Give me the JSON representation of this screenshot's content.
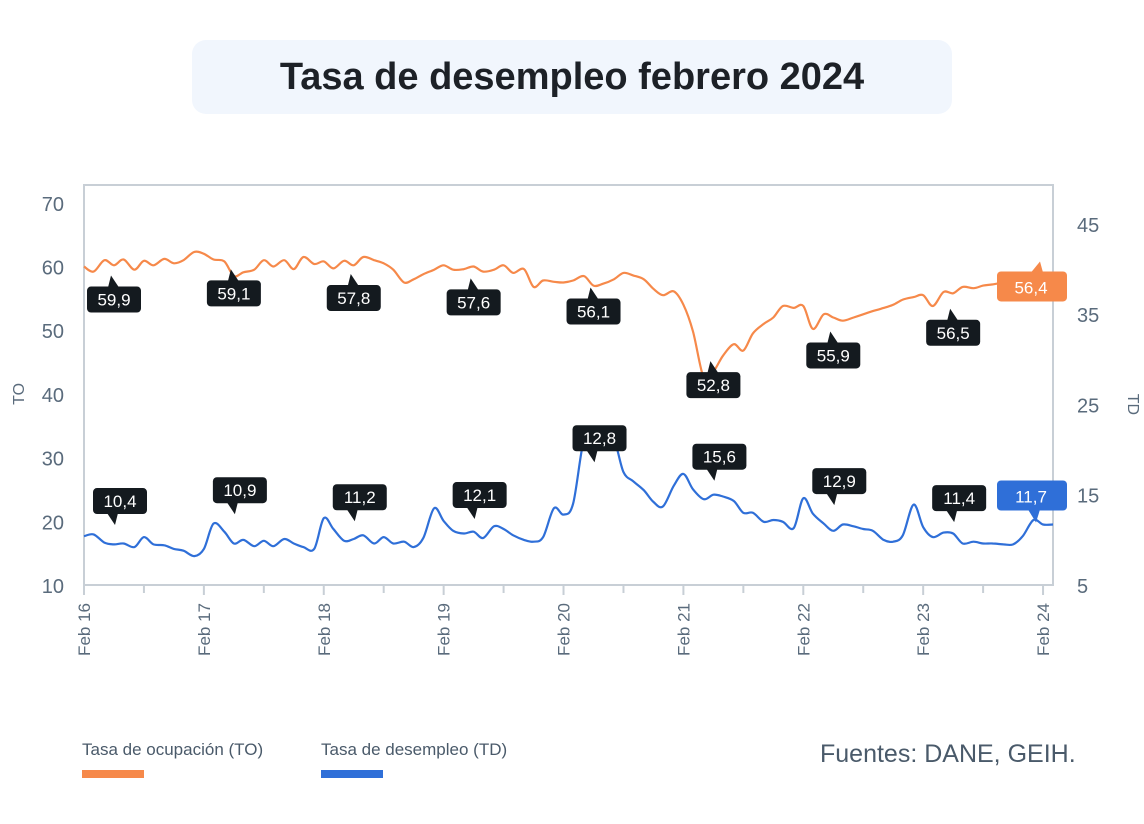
{
  "title": "Tasa de desempleo febrero 2024",
  "source": "Fuentes: DANE, GEIH.",
  "colors": {
    "to": "#f6894a",
    "td": "#2f6fd8",
    "badge": "#141a1f",
    "axis": "#c8cfd6"
  },
  "chart_data": {
    "type": "line",
    "title": "Tasa de desempleo febrero 2024",
    "x_ticks": [
      "Feb 16",
      "Feb 17",
      "Feb 18",
      "Feb 19",
      "Feb 20",
      "Feb 21",
      "Feb 22",
      "Feb 23",
      "Feb 24"
    ],
    "x_range": [
      2016.0,
      2024.083
    ],
    "left_axis": {
      "label": "TO",
      "ticks": [
        10,
        20,
        30,
        40,
        50,
        60,
        70
      ],
      "range": [
        10,
        72.8
      ]
    },
    "right_axis": {
      "label": "TD",
      "ticks": [
        5,
        15,
        25,
        35,
        45
      ],
      "range": [
        5,
        49.3
      ]
    },
    "series": [
      {
        "name": "Tasa de ocupación (TO)",
        "axis": "left",
        "points": [
          [
            2016.0,
            60.0
          ],
          [
            2016.08,
            59.2
          ],
          [
            2016.17,
            61.0
          ],
          [
            2016.25,
            60.2
          ],
          [
            2016.33,
            61.1
          ],
          [
            2016.42,
            59.5
          ],
          [
            2016.5,
            60.9
          ],
          [
            2016.58,
            60.2
          ],
          [
            2016.67,
            61.2
          ],
          [
            2016.75,
            60.5
          ],
          [
            2016.83,
            61.0
          ],
          [
            2016.92,
            62.3
          ],
          [
            2017.0,
            62.0
          ],
          [
            2017.08,
            61.1
          ],
          [
            2017.17,
            60.8
          ],
          [
            2017.25,
            58.5
          ],
          [
            2017.33,
            59.1
          ],
          [
            2017.42,
            59.5
          ],
          [
            2017.5,
            61.0
          ],
          [
            2017.58,
            60.0
          ],
          [
            2017.67,
            61.0
          ],
          [
            2017.75,
            59.6
          ],
          [
            2017.83,
            61.5
          ],
          [
            2017.92,
            60.4
          ],
          [
            2018.0,
            60.8
          ],
          [
            2018.08,
            59.7
          ],
          [
            2018.17,
            60.9
          ],
          [
            2018.25,
            60.2
          ],
          [
            2018.33,
            61.5
          ],
          [
            2018.42,
            61.0
          ],
          [
            2018.5,
            60.5
          ],
          [
            2018.58,
            59.5
          ],
          [
            2018.67,
            57.5
          ],
          [
            2018.75,
            58.0
          ],
          [
            2018.83,
            58.8
          ],
          [
            2018.92,
            59.5
          ],
          [
            2019.0,
            60.2
          ],
          [
            2019.08,
            59.5
          ],
          [
            2019.17,
            59.6
          ],
          [
            2019.25,
            60.0
          ],
          [
            2019.33,
            59.2
          ],
          [
            2019.42,
            59.5
          ],
          [
            2019.5,
            60.2
          ],
          [
            2019.58,
            59.0
          ],
          [
            2019.67,
            59.6
          ],
          [
            2019.75,
            56.8
          ],
          [
            2019.83,
            57.8
          ],
          [
            2019.92,
            57.6
          ],
          [
            2020.0,
            57.5
          ],
          [
            2020.08,
            57.8
          ],
          [
            2020.17,
            58.5
          ],
          [
            2020.25,
            57.0
          ],
          [
            2020.33,
            57.3
          ],
          [
            2020.42,
            58.0
          ],
          [
            2020.5,
            59.0
          ],
          [
            2020.58,
            58.6
          ],
          [
            2020.67,
            58.0
          ],
          [
            2020.75,
            56.5
          ],
          [
            2020.83,
            55.5
          ],
          [
            2020.92,
            56.1
          ],
          [
            2021.0,
            54.0
          ],
          [
            2021.08,
            49.8
          ],
          [
            2021.17,
            42.5
          ],
          [
            2021.25,
            43.5
          ],
          [
            2021.33,
            46.0
          ],
          [
            2021.42,
            47.8
          ],
          [
            2021.5,
            46.8
          ],
          [
            2021.58,
            49.5
          ],
          [
            2021.67,
            51.0
          ],
          [
            2021.75,
            52.0
          ],
          [
            2021.83,
            53.8
          ],
          [
            2021.92,
            53.5
          ],
          [
            2022.0,
            53.8
          ],
          [
            2022.08,
            50.2
          ],
          [
            2022.17,
            52.5
          ],
          [
            2022.25,
            52.0
          ],
          [
            2022.33,
            51.5
          ],
          [
            2022.42,
            52.0
          ],
          [
            2022.5,
            52.5
          ],
          [
            2022.58,
            53.0
          ],
          [
            2022.67,
            53.5
          ],
          [
            2022.75,
            54.0
          ],
          [
            2022.83,
            54.8
          ],
          [
            2022.92,
            55.2
          ],
          [
            2023.0,
            55.5
          ],
          [
            2023.08,
            53.8
          ],
          [
            2023.17,
            56.0
          ],
          [
            2023.25,
            55.8
          ],
          [
            2023.33,
            56.8
          ],
          [
            2023.42,
            56.6
          ],
          [
            2023.5,
            57.0
          ],
          [
            2023.58,
            57.2
          ],
          [
            2023.67,
            57.5
          ],
          [
            2023.75,
            57.8
          ],
          [
            2023.83,
            57.4
          ],
          [
            2023.92,
            57.2
          ],
          [
            2024.0,
            56.4
          ],
          [
            2024.083,
            56.4
          ]
        ]
      },
      {
        "name": "Tasa de desempleo (TD)",
        "axis": "right",
        "points": [
          [
            2016.0,
            10.4
          ],
          [
            2016.08,
            10.6
          ],
          [
            2016.17,
            9.7
          ],
          [
            2016.25,
            9.5
          ],
          [
            2016.33,
            9.6
          ],
          [
            2016.42,
            9.2
          ],
          [
            2016.5,
            10.3
          ],
          [
            2016.58,
            9.5
          ],
          [
            2016.67,
            9.4
          ],
          [
            2016.75,
            9.0
          ],
          [
            2016.83,
            8.8
          ],
          [
            2016.92,
            8.2
          ],
          [
            2017.0,
            9.0
          ],
          [
            2017.08,
            11.8
          ],
          [
            2017.17,
            10.9
          ],
          [
            2017.25,
            9.6
          ],
          [
            2017.33,
            10.0
          ],
          [
            2017.42,
            9.3
          ],
          [
            2017.5,
            9.9
          ],
          [
            2017.58,
            9.3
          ],
          [
            2017.67,
            10.1
          ],
          [
            2017.75,
            9.6
          ],
          [
            2017.83,
            9.2
          ],
          [
            2017.92,
            9.0
          ],
          [
            2018.0,
            12.4
          ],
          [
            2018.08,
            11.2
          ],
          [
            2018.17,
            9.9
          ],
          [
            2018.25,
            10.1
          ],
          [
            2018.33,
            10.5
          ],
          [
            2018.42,
            9.6
          ],
          [
            2018.5,
            10.3
          ],
          [
            2018.58,
            9.6
          ],
          [
            2018.67,
            9.8
          ],
          [
            2018.75,
            9.2
          ],
          [
            2018.83,
            10.2
          ],
          [
            2018.92,
            13.5
          ],
          [
            2019.0,
            12.1
          ],
          [
            2019.08,
            11.0
          ],
          [
            2019.17,
            10.7
          ],
          [
            2019.25,
            10.9
          ],
          [
            2019.33,
            10.2
          ],
          [
            2019.42,
            11.5
          ],
          [
            2019.5,
            11.2
          ],
          [
            2019.58,
            10.5
          ],
          [
            2019.67,
            10.0
          ],
          [
            2019.75,
            9.8
          ],
          [
            2019.83,
            10.3
          ],
          [
            2019.92,
            13.5
          ],
          [
            2020.0,
            12.8
          ],
          [
            2020.08,
            14.0
          ],
          [
            2020.17,
            21.1
          ],
          [
            2020.25,
            21.6
          ],
          [
            2020.33,
            20.5
          ],
          [
            2020.42,
            21.0
          ],
          [
            2020.5,
            17.5
          ],
          [
            2020.58,
            16.5
          ],
          [
            2020.67,
            15.5
          ],
          [
            2020.75,
            14.2
          ],
          [
            2020.83,
            13.7
          ],
          [
            2020.92,
            16.0
          ],
          [
            2021.0,
            17.3
          ],
          [
            2021.08,
            15.6
          ],
          [
            2021.17,
            14.5
          ],
          [
            2021.25,
            15.0
          ],
          [
            2021.33,
            14.8
          ],
          [
            2021.42,
            14.3
          ],
          [
            2021.5,
            13.0
          ],
          [
            2021.58,
            13.0
          ],
          [
            2021.67,
            12.0
          ],
          [
            2021.75,
            12.2
          ],
          [
            2021.83,
            12.0
          ],
          [
            2021.92,
            11.3
          ],
          [
            2022.0,
            14.6
          ],
          [
            2022.08,
            12.9
          ],
          [
            2022.17,
            11.8
          ],
          [
            2022.25,
            11.0
          ],
          [
            2022.33,
            11.7
          ],
          [
            2022.42,
            11.5
          ],
          [
            2022.5,
            11.2
          ],
          [
            2022.58,
            11.0
          ],
          [
            2022.67,
            10.0
          ],
          [
            2022.75,
            9.8
          ],
          [
            2022.83,
            10.5
          ],
          [
            2022.92,
            13.9
          ],
          [
            2023.0,
            11.4
          ],
          [
            2023.08,
            10.3
          ],
          [
            2023.17,
            10.8
          ],
          [
            2023.25,
            10.7
          ],
          [
            2023.33,
            9.6
          ],
          [
            2023.42,
            9.8
          ],
          [
            2023.5,
            9.6
          ],
          [
            2023.58,
            9.6
          ],
          [
            2023.67,
            9.5
          ],
          [
            2023.75,
            9.5
          ],
          [
            2023.83,
            10.4
          ],
          [
            2023.92,
            12.2
          ],
          [
            2024.0,
            11.7
          ],
          [
            2024.083,
            11.7
          ]
        ]
      }
    ],
    "labels": {
      "to": [
        {
          "x": 2016.0,
          "text": "59,9"
        },
        {
          "x": 2017.0,
          "text": "59,1"
        },
        {
          "x": 2018.0,
          "text": "57,8"
        },
        {
          "x": 2019.0,
          "text": "57,6"
        },
        {
          "x": 2020.0,
          "text": "56,1"
        },
        {
          "x": 2021.0,
          "text": "52,8"
        },
        {
          "x": 2022.0,
          "text": "55,9"
        },
        {
          "x": 2023.0,
          "text": "56,5"
        }
      ],
      "to_last": {
        "x": 2024.0,
        "text": "56,4"
      },
      "td": [
        {
          "x": 2016.0,
          "text": "10,4"
        },
        {
          "x": 2017.0,
          "text": "10,9"
        },
        {
          "x": 2018.0,
          "text": "11,2"
        },
        {
          "x": 2019.0,
          "text": "12,1"
        },
        {
          "x": 2020.0,
          "text": "12,8"
        },
        {
          "x": 2021.0,
          "text": "15,6"
        },
        {
          "x": 2022.0,
          "text": "12,9"
        },
        {
          "x": 2023.0,
          "text": "11,4"
        }
      ],
      "td_last": {
        "x": 2024.0,
        "text": "11,7"
      }
    }
  },
  "legend": [
    {
      "label": "Tasa de ocupación (TO)",
      "color": "#f6894a"
    },
    {
      "label": "Tasa de desempleo (TD)",
      "color": "#2f6fd8"
    }
  ]
}
